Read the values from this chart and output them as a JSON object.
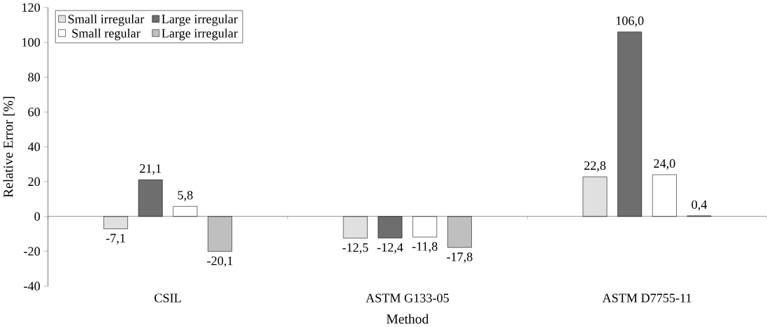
{
  "chart_data": {
    "type": "bar",
    "xlabel": "Method",
    "ylabel": "Relative Error [%]",
    "categories": [
      "CSIL",
      "ASTM G133-05",
      "ASTM D7755-11"
    ],
    "series": [
      {
        "name": "Small irregular",
        "color": "#e0e0e0",
        "values": [
          -7.1,
          -12.5,
          22.8
        ],
        "value_labels": [
          "-7,1",
          "-12,5",
          "22,8"
        ]
      },
      {
        "name": "Large irregular",
        "color": "#6e6e6e",
        "values": [
          21.1,
          -12.4,
          106.0
        ],
        "value_labels": [
          "21,1",
          "-12,4",
          "106,0"
        ]
      },
      {
        "name": "Small regular",
        "color": "#ffffff",
        "values": [
          5.8,
          -11.8,
          24.0
        ],
        "value_labels": [
          "5,8",
          "-11,8",
          "24,0"
        ]
      },
      {
        "name": "Large irregular",
        "color": "#bfbfbf",
        "values": [
          -20.1,
          -17.8,
          0.4
        ],
        "value_labels": [
          "-20,1",
          "-17,8",
          "0,4"
        ]
      }
    ],
    "ylim": [
      -40,
      120
    ],
    "yticks": [
      -40,
      -20,
      0,
      20,
      40,
      60,
      80,
      100,
      120
    ],
    "ref_lines": [
      {
        "axis": "y",
        "value": 0,
        "color": "#000000"
      }
    ],
    "grid": false,
    "legend": "top left"
  }
}
